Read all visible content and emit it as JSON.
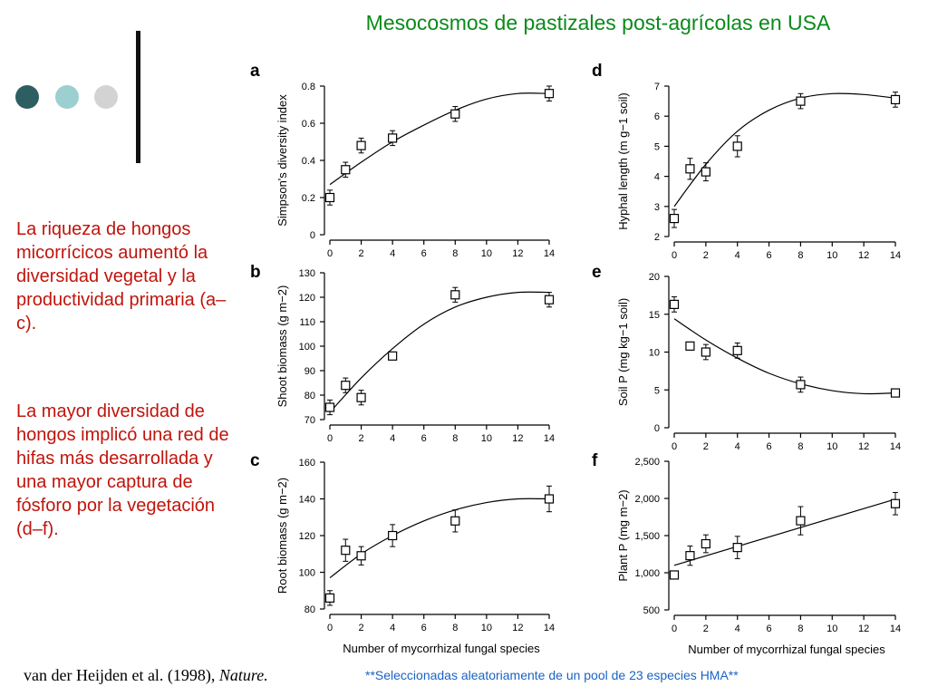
{
  "slide": {
    "title": "Mesocosmos de pastizales post-agrícolas en USA",
    "paragraph1": "La riqueza de hongos micorrícicos aumentó la diversidad vegetal y la productividad primaria (a–c).",
    "paragraph2": "La mayor diversidad de hongos implicó una red de hifas más desarrollada y una mayor captura de fósforo por la vegetación (d–f).",
    "citation_authors": "van der Heijden et al. (1998), ",
    "citation_journal": "Nature.",
    "footnote": "**Seleccionadas aleatoriamente de un pool de 23 especies HMA**"
  },
  "colors": {
    "title": "#0a8a1a",
    "side_text": "#c0140c",
    "footnote": "#1a63c4",
    "dot1": "#2d5e62",
    "dot2": "#9ccfcf",
    "dot3": "#d3d3d3"
  },
  "chart_data": [
    {
      "panel": "a",
      "type": "scatter",
      "ylabel": "Simpson's  diversity  index",
      "xlabel": "",
      "xlim": [
        0,
        14
      ],
      "ylim": [
        0,
        0.8
      ],
      "xticks": [
        "0",
        "2",
        "4",
        "6",
        "8",
        "10",
        "12",
        "14"
      ],
      "yticks": [
        0,
        0.2,
        0.4,
        0.6,
        0.8
      ],
      "ytick_labels": [
        "0",
        "0.2",
        "0.4",
        "0.6",
        "0.8"
      ],
      "x": [
        0,
        1,
        2,
        4,
        8,
        14
      ],
      "y": [
        0.2,
        0.35,
        0.48,
        0.52,
        0.65,
        0.76
      ],
      "err": [
        0.04,
        0.04,
        0.04,
        0.04,
        0.04,
        0.04
      ],
      "fit": {
        "x": [
          0,
          2,
          4,
          6,
          8,
          10,
          12,
          14
        ],
        "y": [
          0.27,
          0.39,
          0.5,
          0.59,
          0.67,
          0.73,
          0.76,
          0.76
        ]
      }
    },
    {
      "panel": "b",
      "type": "scatter",
      "ylabel": "Shoot  biomass  (g m−2)",
      "xlabel": "",
      "xlim": [
        0,
        14
      ],
      "ylim": [
        70,
        130
      ],
      "xticks": [
        "0",
        "2",
        "4",
        "6",
        "8",
        "10",
        "12",
        "14"
      ],
      "yticks": [
        70,
        80,
        90,
        100,
        110,
        120,
        130
      ],
      "ytick_labels": [
        "70",
        "80",
        "90",
        "100",
        "110",
        "120",
        "130"
      ],
      "x": [
        0,
        1,
        2,
        4,
        8,
        14
      ],
      "y": [
        75,
        84,
        79,
        96,
        121,
        119
      ],
      "err": [
        3,
        3,
        3,
        0,
        3,
        3
      ],
      "fit": {
        "x": [
          0,
          2,
          4,
          6,
          8,
          10,
          12,
          14
        ],
        "y": [
          73,
          87,
          99,
          109,
          116,
          120,
          122,
          122
        ]
      }
    },
    {
      "panel": "c",
      "type": "scatter",
      "ylabel": "Root  biomass  (g m−2)",
      "xlabel": "Number  of  mycorrhizal    fungal  species",
      "xlim": [
        0,
        14
      ],
      "ylim": [
        80,
        160
      ],
      "xticks": [
        "0",
        "2",
        "4",
        "6",
        "8",
        "10",
        "12",
        "14"
      ],
      "yticks": [
        80,
        100,
        120,
        140,
        160
      ],
      "ytick_labels": [
        "80",
        "100",
        "120",
        "140",
        "160"
      ],
      "x": [
        0,
        1,
        2,
        4,
        8,
        14
      ],
      "y": [
        86,
        112,
        109,
        120,
        128,
        140
      ],
      "err": [
        4,
        6,
        5,
        6,
        6,
        7
      ],
      "fit": {
        "x": [
          0,
          2,
          4,
          6,
          8,
          10,
          12,
          14
        ],
        "y": [
          97,
          110,
          120,
          128,
          134,
          138,
          140,
          140
        ]
      }
    },
    {
      "panel": "d",
      "type": "scatter",
      "ylabel": "Hyphal  length  (m g−1 soil)",
      "xlabel": "",
      "xlim": [
        0,
        14
      ],
      "ylim": [
        2,
        7
      ],
      "xticks": [
        "0",
        "2",
        "4",
        "6",
        "8",
        "10",
        "12",
        "14"
      ],
      "yticks": [
        2,
        3,
        4,
        5,
        6,
        7
      ],
      "ytick_labels": [
        "2",
        "3",
        "4",
        "5",
        "6",
        "7"
      ],
      "x": [
        0,
        1,
        2,
        4,
        8,
        14
      ],
      "y": [
        2.6,
        4.25,
        4.15,
        5.0,
        6.5,
        6.55
      ],
      "err": [
        0.3,
        0.35,
        0.3,
        0.35,
        0.25,
        0.25
      ],
      "fit": {
        "x": [
          0,
          2,
          4,
          6,
          8,
          10,
          12,
          14
        ],
        "y": [
          3.0,
          4.4,
          5.5,
          6.2,
          6.6,
          6.75,
          6.72,
          6.6
        ]
      }
    },
    {
      "panel": "e",
      "type": "scatter",
      "ylabel": "Soil  P  (mg kg−1 soil)",
      "xlabel": "",
      "xlim": [
        0,
        14
      ],
      "ylim": [
        0,
        20
      ],
      "xticks": [
        "0",
        "2",
        "4",
        "6",
        "8",
        "10",
        "12",
        "14"
      ],
      "yticks": [
        0,
        5,
        10,
        15,
        20
      ],
      "ytick_labels": [
        "0",
        "5",
        "10",
        "15",
        "20"
      ],
      "x": [
        0,
        1,
        2,
        4,
        8,
        14
      ],
      "y": [
        16.3,
        10.8,
        10.0,
        10.2,
        5.7,
        4.6
      ],
      "err": [
        1.0,
        0,
        1.0,
        1.0,
        1.0,
        0
      ],
      "fit": {
        "x": [
          0,
          2,
          4,
          6,
          8,
          10,
          12,
          14
        ],
        "y": [
          14.4,
          11.6,
          9.2,
          7.2,
          5.8,
          4.9,
          4.5,
          4.6
        ]
      }
    },
    {
      "panel": "f",
      "type": "scatter",
      "ylabel": "Plant  P  (mg m−2)",
      "xlabel": "Number  of  mycorrhizal    fungal  species",
      "xlim": [
        0,
        14
      ],
      "ylim": [
        500,
        2500
      ],
      "xticks": [
        "0",
        "2",
        "4",
        "6",
        "8",
        "10",
        "12",
        "14"
      ],
      "yticks": [
        500,
        1000,
        1500,
        2000,
        2500
      ],
      "ytick_labels": [
        "500",
        "1,000",
        "1,500",
        "2,000",
        "2,500"
      ],
      "x": [
        0,
        1,
        2,
        4,
        8,
        14
      ],
      "y": [
        970,
        1230,
        1390,
        1340,
        1700,
        1930
      ],
      "err": [
        0,
        130,
        120,
        150,
        190,
        150
      ],
      "fit": {
        "x": [
          0,
          14
        ],
        "y": [
          1100,
          1990
        ]
      }
    }
  ]
}
